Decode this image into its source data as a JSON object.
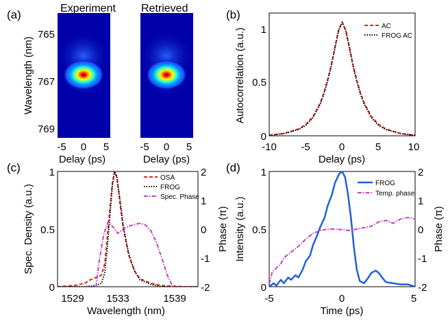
{
  "chart_data": [
    {
      "id": "a",
      "panel_label": "(a)",
      "type": "heatmap",
      "panels": [
        {
          "title": "Experiment"
        },
        {
          "title": "Retrieved"
        }
      ],
      "xlabel": "Delay (ps)",
      "ylabel": "Wavelength (nm)",
      "xticks": [
        "-5",
        "0",
        "5"
      ],
      "xlim": [
        -6,
        6
      ],
      "yticks": [
        "765",
        "767",
        "769"
      ],
      "ylim": [
        764.2,
        769.4
      ],
      "peak": {
        "delay": 0,
        "wavelength": 767.15
      }
    },
    {
      "id": "b",
      "panel_label": "(b)",
      "type": "line",
      "xlabel": "Delay (ps)",
      "ylabel": "Autocorrelation (a.u.)",
      "xticks": [
        "-10",
        "-5",
        "0",
        "5",
        "10"
      ],
      "xlim": [
        -10,
        10
      ],
      "yticks": [
        "0",
        "0.5",
        "1"
      ],
      "ylim": [
        0,
        1.08
      ],
      "series": [
        {
          "name": "AC",
          "color": "#e0201b",
          "style": "dashed",
          "x": [
            -10,
            -8,
            -6,
            -5,
            -4,
            -3,
            -2.5,
            -2,
            -1.5,
            -1,
            -0.5,
            0,
            0.5,
            1,
            1.5,
            2,
            2.5,
            3,
            4,
            5,
            6,
            8,
            10
          ],
          "y": [
            0.005,
            0.02,
            0.06,
            0.1,
            0.17,
            0.29,
            0.38,
            0.49,
            0.62,
            0.78,
            0.93,
            1.0,
            0.93,
            0.78,
            0.62,
            0.49,
            0.38,
            0.29,
            0.17,
            0.1,
            0.06,
            0.02,
            0.005
          ]
        },
        {
          "name": "FROG AC",
          "color": "#000000",
          "style": "dotted",
          "x": [
            -10,
            -8,
            -6,
            -5,
            -4,
            -3,
            -2.5,
            -2,
            -1.5,
            -1,
            -0.5,
            0,
            0.5,
            1,
            1.5,
            2,
            2.5,
            3,
            4,
            5,
            6,
            8,
            10
          ],
          "y": [
            0.005,
            0.02,
            0.055,
            0.09,
            0.16,
            0.28,
            0.37,
            0.48,
            0.61,
            0.77,
            0.92,
            1.0,
            0.92,
            0.77,
            0.61,
            0.48,
            0.37,
            0.28,
            0.16,
            0.09,
            0.055,
            0.02,
            0.005
          ]
        }
      ]
    },
    {
      "id": "c",
      "panel_label": "(c)",
      "type": "line",
      "xlabel": "Wavelength (nm)",
      "ylabel": "Spec. Density (a.u.)",
      "y2label": "Phase (π)",
      "xticks": [
        "1529",
        "1533",
        "1539"
      ],
      "xlim": [
        1528.5,
        1541.3
      ],
      "yticks": [
        "0",
        "0.5",
        "1"
      ],
      "ylim": [
        0,
        1
      ],
      "y2ticks": [
        "-2",
        "-1",
        "0",
        "1",
        "2"
      ],
      "y2lim": [
        -2,
        2
      ],
      "series": [
        {
          "name": "OSA",
          "color": "#e0201b",
          "style": "dashed",
          "axis": "left",
          "x": [
            1528.5,
            1530,
            1531,
            1531.5,
            1532,
            1532.5,
            1532.8,
            1533,
            1533.3,
            1533.5,
            1533.7,
            1533.9,
            1534.2,
            1534.5,
            1535,
            1535.5,
            1536,
            1537,
            1538,
            1540,
            1541.3
          ],
          "y": [
            0.0,
            0.01,
            0.03,
            0.06,
            0.08,
            0.1,
            0.2,
            0.4,
            0.7,
            0.9,
            1.0,
            0.95,
            0.72,
            0.5,
            0.27,
            0.14,
            0.07,
            0.03,
            0.01,
            0.0,
            0.0
          ]
        },
        {
          "name": "FROG",
          "color": "#000000",
          "style": "dotted",
          "axis": "left",
          "x": [
            1528.5,
            1531,
            1532,
            1532.5,
            1532.8,
            1533,
            1533.3,
            1533.5,
            1533.7,
            1533.9,
            1534.2,
            1534.5,
            1535,
            1535.5,
            1536,
            1537,
            1538,
            1541.3
          ],
          "y": [
            0.0,
            0.0,
            0.01,
            0.03,
            0.12,
            0.3,
            0.65,
            0.88,
            1.0,
            0.96,
            0.75,
            0.52,
            0.28,
            0.14,
            0.06,
            0.02,
            0.0,
            0.0
          ]
        },
        {
          "name": "Spec. Phase",
          "color": "#c040c8",
          "style": "dashdot",
          "axis": "right",
          "x": [
            1532,
            1532.3,
            1532.7,
            1533.1,
            1533.5,
            1534,
            1534.5,
            1535,
            1535.5,
            1536,
            1536.5,
            1537,
            1537.5,
            1538,
            1538.5,
            1539
          ],
          "y": [
            -2.0,
            -1.1,
            -0.2,
            0.25,
            0.1,
            -0.15,
            0.0,
            0.1,
            0.16,
            0.2,
            0.15,
            -0.05,
            -0.45,
            -1.0,
            -1.6,
            -2.0
          ]
        }
      ]
    },
    {
      "id": "d",
      "panel_label": "(d)",
      "type": "line",
      "xlabel": "Time (ps)",
      "ylabel": "Intensity (a.u.)",
      "y2label": "Phase (π)",
      "xticks": [
        "-5",
        "0",
        "5"
      ],
      "xlim": [
        -5,
        5
      ],
      "yticks": [
        "0",
        "0.5",
        "1"
      ],
      "ylim": [
        0,
        1
      ],
      "y2ticks": [
        "-2",
        "-1",
        "0",
        "1",
        "2"
      ],
      "y2lim": [
        -2,
        2
      ],
      "series": [
        {
          "name": "FROG",
          "color": "#1f5fe0",
          "style": "solid",
          "axis": "left",
          "x": [
            -5,
            -4.7,
            -4.5,
            -4.2,
            -4,
            -3.7,
            -3.5,
            -3.2,
            -3,
            -2.7,
            -2.5,
            -2.2,
            -2,
            -1.7,
            -1.5,
            -1.2,
            -1,
            -0.7,
            -0.5,
            -0.2,
            0,
            0.2,
            0.4,
            0.6,
            0.8,
            1.0,
            1.2,
            1.5,
            1.8,
            2.0,
            2.3,
            2.5,
            2.8,
            3.0,
            3.5,
            4.0,
            4.5,
            5
          ],
          "y": [
            0.0,
            0.03,
            0.01,
            0.06,
            0.03,
            0.08,
            0.06,
            0.1,
            0.08,
            0.15,
            0.22,
            0.27,
            0.36,
            0.45,
            0.52,
            0.6,
            0.7,
            0.8,
            0.9,
            0.98,
            1.0,
            0.95,
            0.8,
            0.6,
            0.35,
            0.15,
            0.05,
            0.03,
            0.08,
            0.12,
            0.14,
            0.12,
            0.07,
            0.04,
            0.03,
            0.02,
            0.02,
            0.0
          ]
        },
        {
          "name": "Temp. phase",
          "color": "#c040c8",
          "style": "dashdot",
          "axis": "right",
          "x": [
            -5,
            -4.8,
            -4.5,
            -4.2,
            -4,
            -3.5,
            -3,
            -2.5,
            -2,
            -1.5,
            -1,
            -0.5,
            0,
            0.5,
            1,
            1.5,
            2,
            2.5,
            3,
            3.5,
            4,
            4.5,
            5
          ],
          "y": [
            -1.9,
            -1.5,
            -1.35,
            -1.2,
            -1.0,
            -0.8,
            -0.6,
            -0.35,
            -0.15,
            -0.05,
            0.0,
            0.0,
            -0.02,
            -0.05,
            0.0,
            0.05,
            0.1,
            0.25,
            0.3,
            0.2,
            0.35,
            0.4,
            0.35
          ]
        }
      ]
    }
  ]
}
